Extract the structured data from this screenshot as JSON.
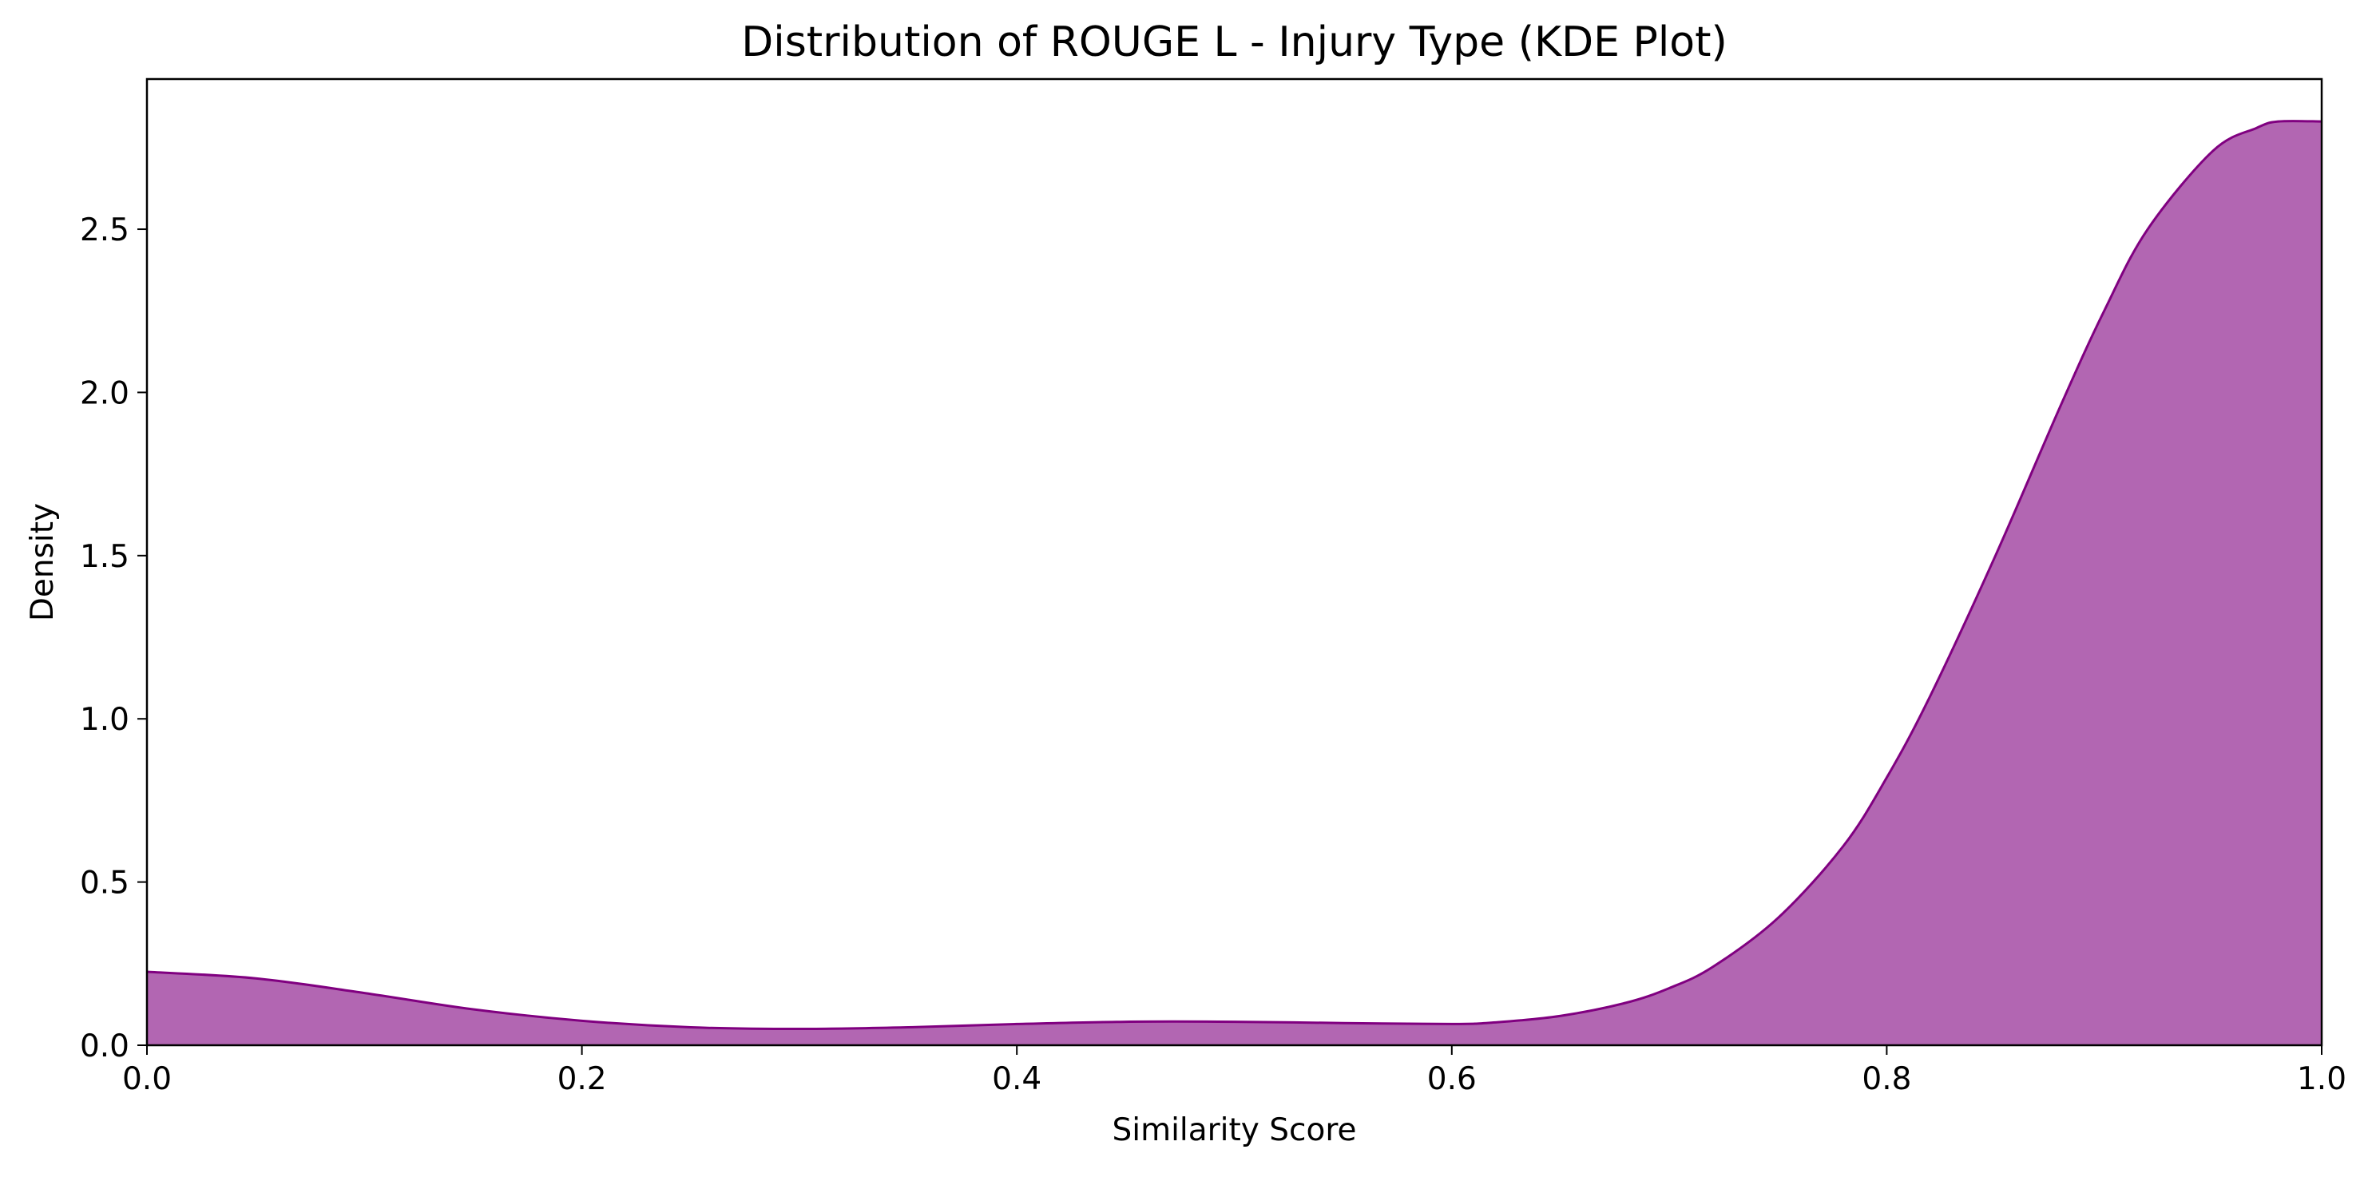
{
  "chart_data": {
    "type": "area",
    "title": "Distribution of ROUGE L - Injury Type (KDE Plot)",
    "xlabel": "Similarity Score",
    "ylabel": "Density",
    "xlim": [
      0.0,
      1.0
    ],
    "ylim": [
      0.0,
      2.96
    ],
    "xticks": [
      0.0,
      0.2,
      0.4,
      0.6,
      0.8,
      1.0
    ],
    "xtick_labels": [
      "0.0",
      "0.2",
      "0.4",
      "0.6",
      "0.8",
      "1.0"
    ],
    "yticks": [
      0.0,
      0.5,
      1.0,
      1.5,
      2.0,
      2.5
    ],
    "ytick_labels": [
      "0.0",
      "0.5",
      "1.0",
      "1.5",
      "2.0",
      "2.5"
    ],
    "grid": false,
    "colors": {
      "fill": "#b266b2",
      "line": "#800080"
    },
    "series": [
      {
        "x": [
          0.0,
          0.05,
          0.1,
          0.15,
          0.2,
          0.25,
          0.3,
          0.35,
          0.4,
          0.45,
          0.5,
          0.55,
          0.6,
          0.62,
          0.65,
          0.68,
          0.7,
          0.72,
          0.75,
          0.78,
          0.8,
          0.82,
          0.85,
          0.88,
          0.9,
          0.92,
          0.95,
          0.97,
          0.98,
          1.0
        ],
        "values": [
          0.225,
          0.205,
          0.16,
          0.11,
          0.075,
          0.055,
          0.05,
          0.055,
          0.065,
          0.072,
          0.072,
          0.068,
          0.065,
          0.07,
          0.09,
          0.13,
          0.175,
          0.24,
          0.39,
          0.61,
          0.82,
          1.07,
          1.5,
          1.96,
          2.25,
          2.5,
          2.74,
          2.81,
          2.83,
          2.83
        ]
      }
    ]
  }
}
